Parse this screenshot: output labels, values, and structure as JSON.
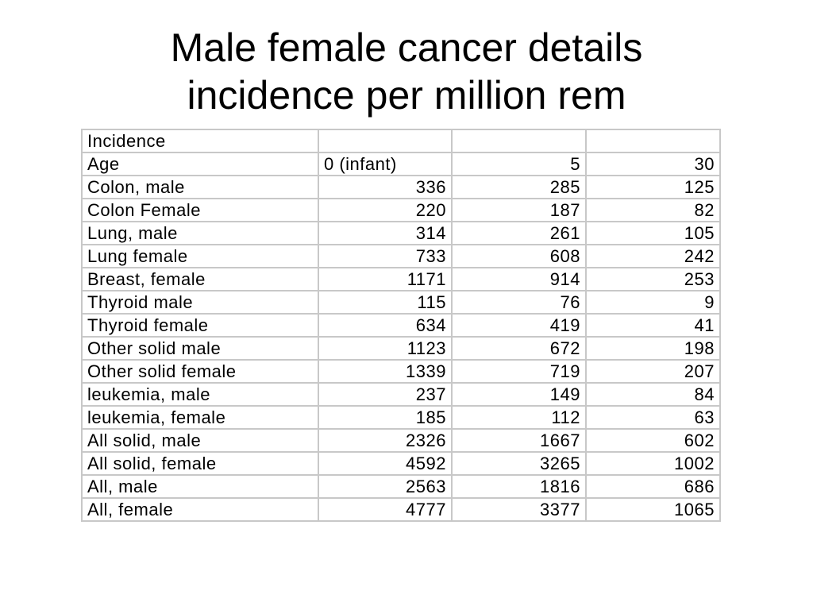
{
  "title": {
    "line1": "Male female cancer details",
    "line2": "incidence per million rem"
  },
  "table": {
    "header_row_1": [
      "Incidence",
      "",
      "",
      ""
    ],
    "header_row_2": [
      "Age",
      "0 (infant)",
      "5",
      "30"
    ],
    "rows": [
      [
        "Colon, male",
        "336",
        "285",
        "125"
      ],
      [
        "Colon Female",
        "220",
        "187",
        "82"
      ],
      [
        "Lung, male",
        "314",
        "261",
        "105"
      ],
      [
        "Lung female",
        "733",
        "608",
        "242"
      ],
      [
        "Breast, female",
        "1171",
        "914",
        "253"
      ],
      [
        "Thyroid male",
        "115",
        "76",
        "9"
      ],
      [
        "Thyroid female",
        "634",
        "419",
        "41"
      ],
      [
        "Other solid male",
        "1123",
        "672",
        "198"
      ],
      [
        "Other solid female",
        "1339",
        "719",
        "207"
      ],
      [
        "leukemia, male",
        "237",
        "149",
        "84"
      ],
      [
        "leukemia, female",
        "185",
        "112",
        "63"
      ],
      [
        "All solid, male",
        "2326",
        "1667",
        "602"
      ],
      [
        "All solid, female",
        "4592",
        "3265",
        "1002"
      ],
      [
        "All, male",
        "2563",
        "1816",
        "686"
      ],
      [
        "All, female",
        "4777",
        "3377",
        "1065"
      ]
    ]
  }
}
